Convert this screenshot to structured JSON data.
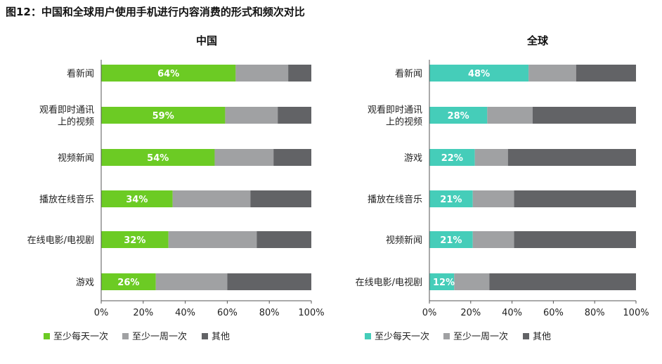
{
  "figure": {
    "title": "图12：中国和全球用户使用手机进行内容消费的形式和频次对比"
  },
  "colors": {
    "china_daily": "#6CCB24",
    "global_daily": "#45CDB9",
    "weekly": "#A0A1A3",
    "other": "#626366"
  },
  "chart_data": [
    {
      "type": "bar",
      "orientation": "horizontal",
      "stacked": true,
      "title": "中国",
      "categories": [
        [
          "看新闻"
        ],
        [
          "观看即时通讯",
          "上的视频"
        ],
        [
          "视频新闻"
        ],
        [
          "播放在线音乐"
        ],
        [
          "在线电影/电视剧"
        ],
        [
          "游戏"
        ]
      ],
      "series": [
        {
          "name": "至少每天一次",
          "values": [
            64,
            59,
            54,
            34,
            32,
            26
          ],
          "labels": [
            "64%",
            "59%",
            "54%",
            "34%",
            "32%",
            "26%"
          ]
        },
        {
          "name": "至少一周一次",
          "values": [
            25,
            25,
            28,
            37,
            42,
            34
          ]
        },
        {
          "name": "其他",
          "values": [
            11,
            16,
            18,
            29,
            26,
            40
          ]
        }
      ],
      "xlim": [
        0,
        100
      ],
      "xticks": [
        "0%",
        "20%",
        "40%",
        "60%",
        "80%",
        "100%"
      ],
      "legend": "bottom-left",
      "grid": false
    },
    {
      "type": "bar",
      "orientation": "horizontal",
      "stacked": true,
      "title": "全球",
      "categories": [
        [
          "看新闻"
        ],
        [
          "观看即时通讯",
          "上的视频"
        ],
        [
          "游戏"
        ],
        [
          "播放在线音乐"
        ],
        [
          "视频新闻"
        ],
        [
          "在线电影/电视剧"
        ]
      ],
      "series": [
        {
          "name": "至少每天一次",
          "values": [
            48,
            28,
            22,
            21,
            21,
            12
          ],
          "labels": [
            "48%",
            "28%",
            "22%",
            "21%",
            "21%",
            "12%"
          ]
        },
        {
          "name": "至少一周一次",
          "values": [
            23,
            22,
            16,
            20,
            20,
            17
          ]
        },
        {
          "name": "其他",
          "values": [
            29,
            50,
            62,
            59,
            59,
            71
          ]
        }
      ],
      "xlim": [
        0,
        100
      ],
      "xticks": [
        "0%",
        "20%",
        "40%",
        "60%",
        "80%",
        "100%"
      ],
      "legend": "bottom-left",
      "grid": false
    }
  ]
}
